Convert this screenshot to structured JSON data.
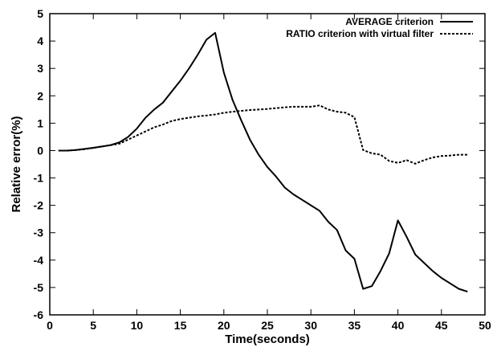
{
  "chart_data": {
    "type": "line",
    "title": "",
    "xlabel": "Time(seconds)",
    "ylabel": "Relative error(%)",
    "xlim": [
      0,
      50
    ],
    "ylim": [
      -6,
      5
    ],
    "xticks": [
      0,
      5,
      10,
      15,
      20,
      25,
      30,
      35,
      40,
      45,
      50
    ],
    "yticks": [
      -6,
      -5,
      -4,
      -3,
      -2,
      -1,
      0,
      1,
      2,
      3,
      4,
      5
    ],
    "grid": false,
    "legend_position": "top-right",
    "series": [
      {
        "name": "AVERAGE criterion",
        "style": "solid",
        "color": "#000000",
        "x": [
          1,
          2,
          3,
          4,
          5,
          6,
          7,
          8,
          9,
          10,
          11,
          12,
          13,
          14,
          15,
          16,
          17,
          18,
          19,
          20,
          21,
          22,
          23,
          24,
          25,
          26,
          27,
          28,
          29,
          30,
          31,
          32,
          33,
          34,
          35,
          36,
          37,
          38,
          39,
          40,
          41,
          42,
          43,
          44,
          45,
          46,
          47,
          48
        ],
        "y": [
          0.0,
          0.0,
          0.02,
          0.06,
          0.1,
          0.15,
          0.2,
          0.3,
          0.5,
          0.8,
          1.2,
          1.5,
          1.75,
          2.15,
          2.55,
          3.0,
          3.5,
          4.05,
          4.3,
          2.85,
          1.85,
          1.1,
          0.4,
          -0.15,
          -0.6,
          -0.95,
          -1.35,
          -1.6,
          -1.8,
          -2.0,
          -2.2,
          -2.6,
          -2.9,
          -3.65,
          -3.95,
          -5.05,
          -4.95,
          -4.4,
          -3.75,
          -2.55,
          -3.15,
          -3.8,
          -4.1,
          -4.4,
          -4.65,
          -4.85,
          -5.05,
          -5.15
        ]
      },
      {
        "name": "RATIO criterion with virtual filter",
        "style": "dashed",
        "color": "#000000",
        "x": [
          1,
          2,
          3,
          4,
          5,
          6,
          7,
          8,
          9,
          10,
          11,
          12,
          13,
          14,
          15,
          16,
          17,
          18,
          19,
          20,
          21,
          22,
          23,
          24,
          25,
          26,
          27,
          28,
          29,
          30,
          31,
          32,
          33,
          34,
          35,
          36,
          37,
          38,
          39,
          40,
          41,
          42,
          43,
          44,
          45,
          46,
          47,
          48
        ],
        "y": [
          0.0,
          0.0,
          0.02,
          0.05,
          0.1,
          0.15,
          0.2,
          0.25,
          0.4,
          0.55,
          0.7,
          0.85,
          0.95,
          1.08,
          1.15,
          1.2,
          1.25,
          1.28,
          1.32,
          1.38,
          1.42,
          1.45,
          1.48,
          1.5,
          1.52,
          1.55,
          1.58,
          1.6,
          1.6,
          1.6,
          1.65,
          1.5,
          1.42,
          1.38,
          1.22,
          0.02,
          -0.1,
          -0.15,
          -0.38,
          -0.45,
          -0.35,
          -0.48,
          -0.35,
          -0.25,
          -0.2,
          -0.18,
          -0.15,
          -0.15
        ]
      }
    ]
  }
}
